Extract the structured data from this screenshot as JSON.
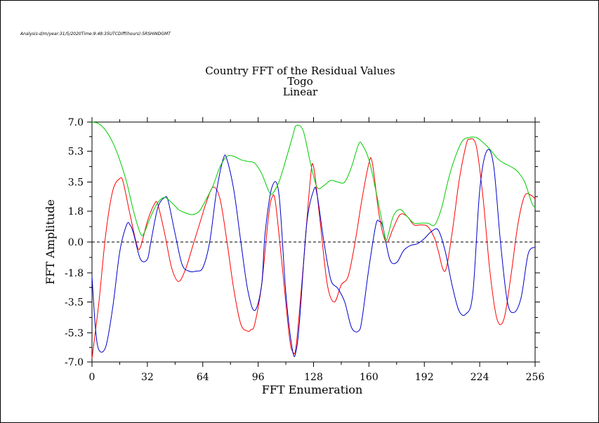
{
  "meta_line": "Analysis-d/m/year:31/5/2020Time:9:48:35UTCDiff(hours):5RSHINDGMT",
  "titles": [
    "Country FFT of the Residual Values",
    "Togo",
    "Linear"
  ],
  "chart_data": {
    "type": "line",
    "title": "Country FFT of the Residual Values",
    "subtitle": [
      "Togo",
      "Linear"
    ],
    "xlabel": "FFT Enumeration",
    "ylabel": "FFT Amplitude",
    "xlim": [
      0,
      256
    ],
    "ylim": [
      -7.0,
      7.0
    ],
    "x_ticks": [
      0,
      32,
      64,
      96,
      128,
      160,
      192,
      224,
      256
    ],
    "y_ticks": [
      -7.0,
      -5.3,
      -3.5,
      -1.8,
      0.0,
      1.8,
      3.5,
      5.3,
      7.0
    ],
    "y_tick_labels": [
      "-7.0",
      "-5.3",
      "-3.5",
      "-1.8",
      "0.0",
      "1.8",
      "3.5",
      "5.3",
      "7.0"
    ],
    "zero_line": "dashed",
    "grid": false,
    "series": [
      {
        "color": "#ff0000",
        "x": [
          0,
          4,
          8,
          12,
          16,
          18,
          22,
          26,
          28,
          32,
          36,
          38,
          42,
          46,
          50,
          54,
          58,
          62,
          66,
          70,
          74,
          78,
          82,
          86,
          90,
          92,
          94,
          98,
          102,
          104,
          106,
          110,
          114,
          116,
          118,
          122,
          126,
          128,
          132,
          136,
          140,
          144,
          148,
          152,
          156,
          160,
          162,
          166,
          170,
          174,
          178,
          182,
          186,
          190,
          194,
          198,
          200,
          204,
          208,
          212,
          216,
          218,
          222,
          226,
          230,
          234,
          238,
          242,
          246,
          250,
          254,
          256
        ],
        "y": [
          -6.8,
          -3.5,
          0.5,
          3.0,
          3.7,
          3.5,
          1.6,
          -0.2,
          -0.3,
          1.2,
          2.2,
          2.2,
          0.5,
          -1.5,
          -2.3,
          -1.6,
          -0.3,
          1.0,
          2.3,
          3.2,
          2.5,
          0.0,
          -2.8,
          -4.8,
          -5.2,
          -5.1,
          -4.8,
          -2.5,
          1.5,
          2.6,
          2.3,
          -1.5,
          -5.5,
          -6.4,
          -6.0,
          -1.5,
          3.5,
          4.4,
          1.0,
          -2.5,
          -3.5,
          -2.5,
          -2.0,
          0.0,
          2.5,
          4.6,
          4.6,
          1.5,
          0.0,
          0.8,
          1.6,
          1.5,
          1.0,
          1.0,
          0.9,
          0.2,
          -0.5,
          -1.7,
          0.5,
          3.5,
          5.6,
          6.0,
          5.6,
          2.5,
          -1.8,
          -4.5,
          -4.5,
          -2.0,
          1.0,
          2.7,
          2.7,
          2.5
        ]
      },
      {
        "color": "#0000cc",
        "x": [
          0,
          2,
          4,
          8,
          12,
          16,
          20,
          22,
          24,
          28,
          32,
          34,
          38,
          42,
          44,
          48,
          52,
          56,
          60,
          64,
          68,
          72,
          76,
          78,
          82,
          86,
          90,
          94,
          98,
          100,
          104,
          108,
          112,
          116,
          118,
          120,
          124,
          128,
          130,
          134,
          138,
          142,
          146,
          150,
          154,
          156,
          160,
          164,
          166,
          168,
          172,
          176,
          180,
          184,
          188,
          192,
          196,
          200,
          204,
          208,
          212,
          216,
          220,
          224,
          228,
          232,
          236,
          240,
          244,
          248,
          252,
          256
        ],
        "y": [
          -2.0,
          -5.0,
          -6.3,
          -6.1,
          -3.8,
          -0.6,
          1.0,
          1.0,
          0.5,
          -1.0,
          -1.0,
          0.0,
          2.0,
          2.6,
          2.4,
          0.5,
          -1.3,
          -1.7,
          -1.7,
          -1.5,
          0.0,
          3.0,
          4.9,
          4.8,
          3.0,
          0.0,
          -2.8,
          -4.0,
          -2.5,
          0.5,
          3.2,
          2.8,
          -3.0,
          -6.4,
          -6.3,
          -4.5,
          1.0,
          3.0,
          2.8,
          0.0,
          -2.2,
          -2.7,
          -3.5,
          -5.0,
          -5.2,
          -4.5,
          -1.5,
          1.0,
          1.2,
          0.9,
          -1.0,
          -1.2,
          -0.5,
          -0.2,
          -0.1,
          0.2,
          0.6,
          0.7,
          -0.5,
          -2.5,
          -4.0,
          -4.2,
          -3.0,
          3.0,
          5.3,
          4.5,
          0.0,
          -3.5,
          -4.1,
          -3.2,
          -0.7,
          -0.3
        ]
      },
      {
        "color": "#00cc00",
        "x": [
          0,
          4,
          8,
          12,
          16,
          20,
          24,
          28,
          30,
          34,
          38,
          42,
          46,
          50,
          54,
          58,
          62,
          66,
          70,
          74,
          78,
          82,
          86,
          90,
          94,
          98,
          102,
          104,
          108,
          112,
          116,
          118,
          122,
          126,
          130,
          134,
          138,
          142,
          146,
          150,
          154,
          156,
          160,
          164,
          168,
          170,
          174,
          178,
          182,
          186,
          190,
          194,
          198,
          202,
          206,
          210,
          214,
          218,
          222,
          226,
          230,
          234,
          238,
          242,
          246,
          250,
          254,
          256
        ],
        "y": [
          7.0,
          6.9,
          6.5,
          5.8,
          4.8,
          3.5,
          1.8,
          0.5,
          0.5,
          1.5,
          2.3,
          2.6,
          2.3,
          1.9,
          1.7,
          1.6,
          1.8,
          2.5,
          3.3,
          4.4,
          5.0,
          5.0,
          4.8,
          4.7,
          4.6,
          4.0,
          3.0,
          2.8,
          3.5,
          4.8,
          6.2,
          6.8,
          6.5,
          4.7,
          3.2,
          3.3,
          3.6,
          3.5,
          3.5,
          4.4,
          5.7,
          5.7,
          4.8,
          3.0,
          1.0,
          0.1,
          1.5,
          1.9,
          1.5,
          1.1,
          1.1,
          1.1,
          1.0,
          2.0,
          3.7,
          5.0,
          5.9,
          6.1,
          6.1,
          5.8,
          5.4,
          4.9,
          4.6,
          4.4,
          4.1,
          3.5,
          2.3,
          2.0
        ]
      }
    ]
  }
}
